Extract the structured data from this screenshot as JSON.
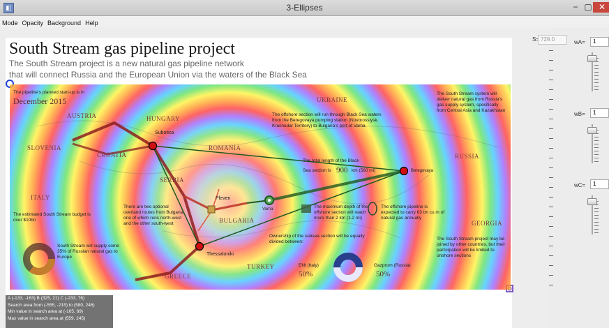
{
  "window": {
    "title": "3-Ellipses",
    "minimize": "−",
    "maximize": "▢",
    "close": "✕"
  },
  "menu": [
    "Mode",
    "Opacity",
    "Background",
    "Help"
  ],
  "poster": {
    "title": "South Stream gas pipeline project",
    "subtitle_line1": "The South Stream project is a new natural gas pipeline network",
    "subtitle_line2": "that will connect Russia and the European Union via the waters of the Black Sea"
  },
  "map": {
    "start_note": "The pipeline's planned start-up is in",
    "start_date": "December 2015",
    "countries": [
      "AUSTRIA",
      "HUNGARY",
      "SLOVENIA",
      "CROATIA",
      "ROMANIA",
      "UKRAINE",
      "RUSSIA",
      "ITALY",
      "SERBIA",
      "BULGARIA",
      "GEORGIA",
      "TURKEY",
      "GREECE"
    ],
    "cities": {
      "subotica": "Subotica",
      "pleven": "Pleven",
      "varna": "Varna",
      "thessaloniki": "Thessaloniki",
      "beregovaya": "Beregovaya"
    },
    "offshore_note": "The offshore section will run through Black Sea waters from the Beregovaya pumping station (Novorossiysk, Krasnodar Territory) to Bulgaria's port of Varna",
    "supply_note": "The South Stream system will deliver natural gas from Russia's gas supply system, specifically from Central Asia and Kazakhstan",
    "length_note1": "The total length of the Black",
    "length_note2": "Sea section is",
    "length_value": "900",
    "length_unit": "km (560 mi)",
    "depth_note": "The maximum depth of the offshore section will reach more than 2 km (1.2 mi)",
    "capacity_note": "The offshore pipeline is expected to carry 63 bn cu m of natural gas annually",
    "routes_note": "There are two optional overland routes from Bulgaria, one of which runs north-west and the other south-west",
    "budget_note": "The estimated South Stream budget is over $10bn",
    "europe_note": "South Stream will supply some 35% of Russian natural gas to Europe",
    "ownership_note": "Ownership of the subsea section will be equally divided between:",
    "eni_label": "ENI (Italy)",
    "eni_value": "50%",
    "gazprom_label": "Gazprom (Russia)",
    "gazprom_value": "50%",
    "joined_note": "The South Stream project may be joined by other countries, but their participation will be limited to onshore sections"
  },
  "status": [
    "A (-133, -163)  B (325, 21)  C (-233, 76)",
    "Search area from (-555, -215) to (580, 246)",
    "Min value in search area at (-105, 69)",
    "Max value in search area at (559, 245)"
  ],
  "controls": {
    "s_label": "S=",
    "s_value": "729.0",
    "wa_label": "wA=",
    "wa_value": "1",
    "wb_label": "wB=",
    "wb_value": "1",
    "wc_label": "wC=",
    "wc_value": "1"
  },
  "colors": {
    "ring_red": "#ff2a2a",
    "pipeline_green": "#1f5a1f",
    "route_red": "#c0392b",
    "marker_point": "#d01010"
  }
}
